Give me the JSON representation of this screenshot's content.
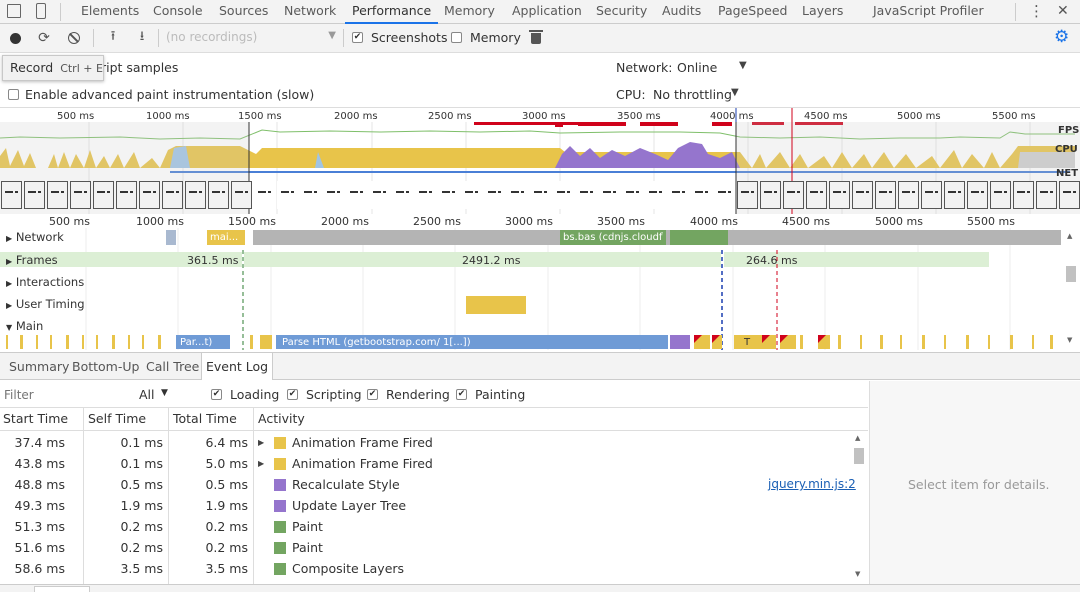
{
  "devtools_tabs": [
    {
      "label": "Elements"
    },
    {
      "label": "Console"
    },
    {
      "label": "Sources"
    },
    {
      "label": "Network"
    },
    {
      "label": "Performance"
    },
    {
      "label": "Memory"
    },
    {
      "label": "Application"
    },
    {
      "label": "Security"
    },
    {
      "label": "Audits"
    },
    {
      "label": "PageSpeed"
    },
    {
      "label": "Layers"
    },
    {
      "label": "JavaScript Profiler"
    }
  ],
  "toolbar": {
    "profile_select": "(no recordings)",
    "screenshots_label": "Screenshots",
    "screenshots_checked": true,
    "memory_label": "Memory",
    "memory_checked": false
  },
  "tooltip": {
    "label": "Record",
    "shortcut": "Ctrl + E"
  },
  "settings": {
    "js_samples_label": "ript samples",
    "paint_label": "Enable advanced paint instrumentation (slow)",
    "network_label": "Network:",
    "network_value": "Online",
    "cpu_label": "CPU:",
    "cpu_value": "No throttling"
  },
  "overview": {
    "ticks": [
      "500 ms",
      "1000 ms",
      "1500 ms",
      "2000 ms",
      "2500 ms",
      "3000 ms",
      "3500 ms",
      "4000 ms",
      "4500 ms",
      "5000 ms",
      "5500 ms"
    ],
    "fps_label": "FPS",
    "cpu_label": "CPU",
    "net_label": "NET"
  },
  "flamechart": {
    "ticks": [
      "500 ms",
      "1000 ms",
      "1500 ms",
      "2000 ms",
      "2500 ms",
      "3000 ms",
      "3500 ms",
      "4000 ms",
      "4500 ms",
      "5000 ms",
      "5500 ms"
    ],
    "tracks": {
      "network": "Network",
      "frames": "Frames",
      "interactions": "Interactions",
      "user_timing": "User Timing",
      "main": "Main"
    },
    "frame_labels": [
      "361.5 ms",
      "2491.2 ms",
      "264.6 ms"
    ],
    "network_bar_labels": [
      "mai...",
      "bs.bas (cdnjs.cloudflare.com)"
    ],
    "main_bar_labels": [
      "Par...t)",
      "Parse HTML (getbootstrap.com/ 1[...])",
      "T"
    ]
  },
  "bottom_tabs": [
    {
      "label": "Summary"
    },
    {
      "label": "Bottom-Up"
    },
    {
      "label": "Call Tree"
    },
    {
      "label": "Event Log"
    }
  ],
  "filter": {
    "placeholder": "Filter",
    "dropdown_value": "All",
    "categories": [
      {
        "label": "Loading",
        "checked": true
      },
      {
        "label": "Scripting",
        "checked": true
      },
      {
        "label": "Rendering",
        "checked": true
      },
      {
        "label": "Painting",
        "checked": true
      }
    ]
  },
  "event_log": {
    "headers": {
      "start": "Start Time",
      "self": "Self Time",
      "total": "Total Time",
      "activity": "Activity"
    },
    "rows": [
      {
        "start": "37.4 ms",
        "self": "0.1 ms",
        "total": "6.4 ms",
        "activity": "Animation Frame Fired",
        "color": "#e8c44a",
        "expandable": true,
        "link": ""
      },
      {
        "start": "43.8 ms",
        "self": "0.1 ms",
        "total": "5.0 ms",
        "activity": "Animation Frame Fired",
        "color": "#e8c44a",
        "expandable": true,
        "link": ""
      },
      {
        "start": "48.8 ms",
        "self": "0.5 ms",
        "total": "0.5 ms",
        "activity": "Recalculate Style",
        "color": "#9575cd",
        "expandable": false,
        "link": "jquery.min.js:2"
      },
      {
        "start": "49.3 ms",
        "self": "1.9 ms",
        "total": "1.9 ms",
        "activity": "Update Layer Tree",
        "color": "#9575cd",
        "expandable": false,
        "link": ""
      },
      {
        "start": "51.3 ms",
        "self": "0.2 ms",
        "total": "0.2 ms",
        "activity": "Paint",
        "color": "#73a561",
        "expandable": false,
        "link": ""
      },
      {
        "start": "51.6 ms",
        "self": "0.2 ms",
        "total": "0.2 ms",
        "activity": "Paint",
        "color": "#73a561",
        "expandable": false,
        "link": ""
      },
      {
        "start": "58.6 ms",
        "self": "3.5 ms",
        "total": "3.5 ms",
        "activity": "Composite Layers",
        "color": "#73a561",
        "expandable": false,
        "link": ""
      }
    ]
  },
  "details": {
    "placeholder": "Select item for details."
  }
}
